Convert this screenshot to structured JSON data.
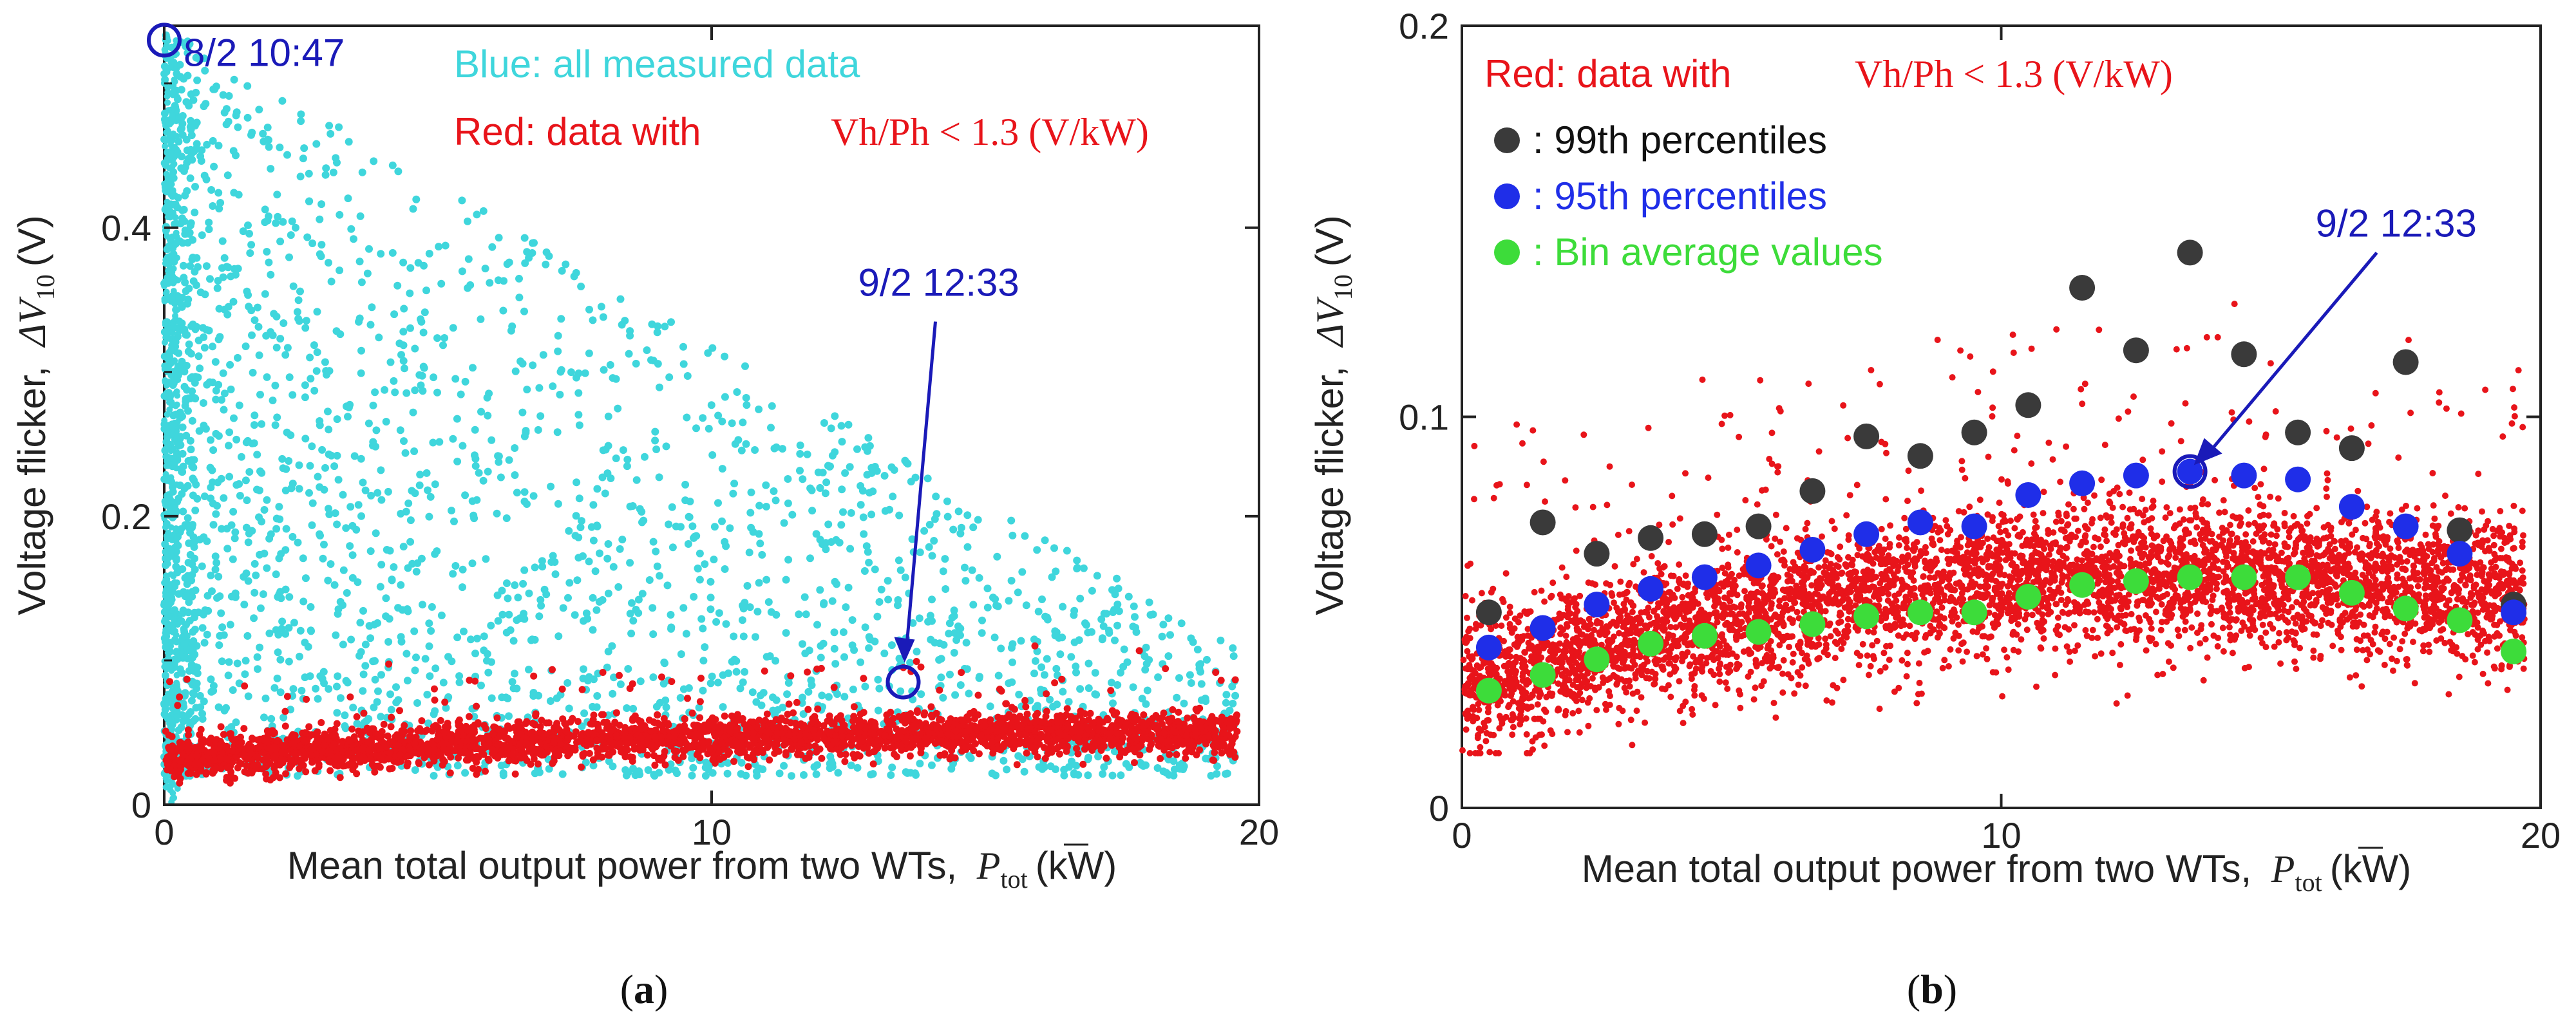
{
  "chart_data": [
    {
      "panel": "a",
      "type": "scatter",
      "caption": "a",
      "xlabel": "Mean total output power from two WTs,",
      "xlabel_symbol": "P",
      "xlabel_sub": "tot",
      "xlabel_unit": "(kW)",
      "ylabel": "Voltage flicker,",
      "ylabel_symbol": "ΔV",
      "ylabel_sub": "10",
      "ylabel_unit": "(V)",
      "xlim": [
        0,
        20
      ],
      "ylim": [
        0,
        0.54
      ],
      "xticks": [
        0,
        10,
        20
      ],
      "yticks": [
        0,
        0.2,
        0.4
      ],
      "legend": {
        "blue": "Blue: all measured data",
        "red_prefix": "Red: data with",
        "red_condition": "Vh/Ph < 1.3 (V/kW)"
      },
      "series": [
        {
          "name": "all measured data",
          "color": "#3fd6dc",
          "description": "dense scatter 0–20 kW, 0–0.54 V, densest at low power"
        },
        {
          "name": "data with Vh/Ph < 1.3 (V/kW)",
          "color": "#e8141a",
          "description": "band ~0.03–0.07 V rising with power"
        }
      ],
      "annotations": [
        {
          "label": "8/2 10:47",
          "x": 0.0,
          "y": 0.53
        },
        {
          "label": "9/2 12:33",
          "x": 13.5,
          "y": 0.085
        }
      ]
    },
    {
      "panel": "b",
      "type": "scatter",
      "caption": "b",
      "xlabel": "Mean total output power from two WTs,",
      "xlabel_symbol": "P",
      "xlabel_sub": "tot",
      "xlabel_unit": "(kW)",
      "ylabel": "Voltage flicker,",
      "ylabel_symbol": "ΔV",
      "ylabel_sub": "10",
      "ylabel_unit": "(V)",
      "xlim": [
        0,
        20
      ],
      "ylim": [
        0,
        0.2
      ],
      "xticks": [
        0,
        10,
        20
      ],
      "yticks": [
        0,
        0.1,
        0.2
      ],
      "legend": {
        "red_prefix": "Red: data with",
        "red_condition": "Vh/Ph < 1.3 (V/kW)",
        "p99": ": 99th percentiles",
        "p95": ": 95th percentiles",
        "avg": ": Bin average values"
      },
      "bin_centers": [
        0.5,
        1.5,
        2.5,
        3.5,
        4.5,
        5.5,
        6.5,
        7.5,
        8.5,
        9.5,
        10.5,
        11.5,
        12.5,
        13.5,
        14.5,
        15.5,
        16.5,
        17.5,
        18.5,
        19.5
      ],
      "series": [
        {
          "name": "99th percentiles",
          "color": "#3a3a3a",
          "values": [
            0.05,
            0.073,
            0.065,
            0.069,
            0.07,
            0.072,
            0.081,
            0.095,
            0.09,
            0.096,
            0.103,
            0.133,
            0.117,
            0.142,
            0.116,
            0.096,
            0.092,
            0.114,
            0.071,
            0.052
          ]
        },
        {
          "name": "95th percentiles",
          "color": "#1f2ee8",
          "values": [
            0.041,
            0.046,
            0.052,
            0.056,
            0.059,
            0.062,
            0.066,
            0.07,
            0.073,
            0.072,
            0.08,
            0.083,
            0.085,
            0.086,
            0.085,
            0.084,
            0.077,
            0.072,
            0.065,
            0.05
          ]
        },
        {
          "name": "Bin average values",
          "color": "#3ddc3a",
          "values": [
            0.03,
            0.034,
            0.038,
            0.042,
            0.044,
            0.045,
            0.047,
            0.049,
            0.05,
            0.05,
            0.054,
            0.057,
            0.058,
            0.059,
            0.059,
            0.059,
            0.055,
            0.051,
            0.048,
            0.04
          ]
        },
        {
          "name": "data with Vh/Ph < 1.3 (V/kW)",
          "color": "#e8141a",
          "description": "dense band ~0.02–0.08 V rising to ~10–14 kW then falling"
        }
      ],
      "annotations": [
        {
          "label": "9/2 12:33",
          "x": 13.5,
          "y": 0.086
        }
      ]
    }
  ]
}
